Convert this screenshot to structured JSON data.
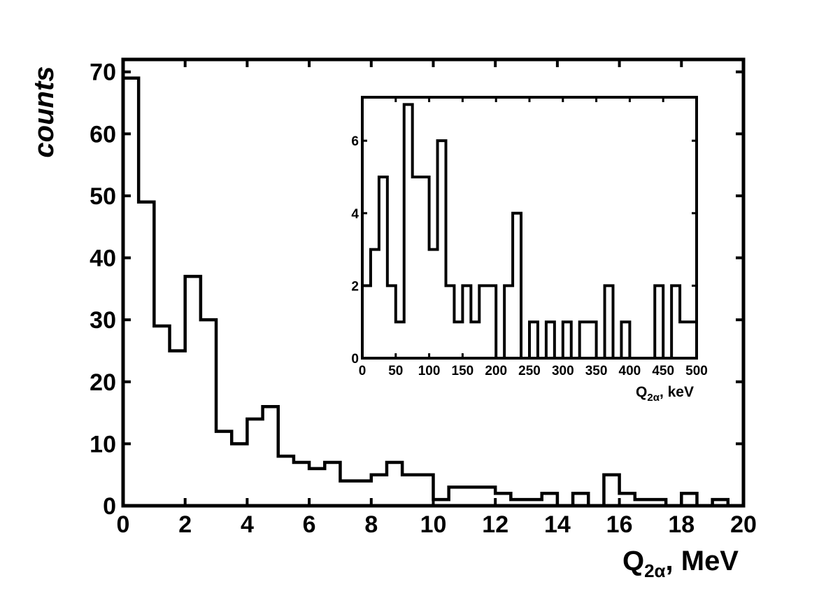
{
  "chart_data": [
    {
      "type": "histogram",
      "role": "main",
      "xlabel": {
        "base": "Q",
        "sub": "2α",
        "rest": ", MeV"
      },
      "ylabel": "counts",
      "xlim": [
        0,
        20
      ],
      "ylim": [
        0,
        72
      ],
      "xticks": [
        0,
        2,
        4,
        6,
        8,
        10,
        12,
        14,
        16,
        18,
        20
      ],
      "yticks": [
        0,
        10,
        20,
        30,
        40,
        50,
        60,
        70
      ],
      "bin_width": 0.5,
      "bin_start": 0,
      "values": [
        69,
        49,
        29,
        25,
        37,
        30,
        12,
        10,
        14,
        16,
        8,
        7,
        6,
        7,
        4,
        4,
        5,
        7,
        5,
        5,
        1,
        3,
        3,
        3,
        2,
        1,
        1,
        2,
        0,
        2,
        0,
        5,
        2,
        1,
        1,
        0,
        2,
        0,
        1,
        0
      ]
    },
    {
      "type": "histogram",
      "role": "inset",
      "xlabel": {
        "base": "Q",
        "sub": "2α",
        "rest": ", keV"
      },
      "xlim": [
        0,
        500
      ],
      "ylim": [
        0,
        7.2
      ],
      "xticks": [
        0,
        50,
        100,
        150,
        200,
        250,
        300,
        350,
        400,
        450,
        500
      ],
      "yticks": [
        0,
        2,
        4,
        6
      ],
      "bin_width": 12.5,
      "bin_start": 0,
      "values": [
        2,
        3,
        5,
        2,
        1,
        7,
        5,
        5,
        3,
        6,
        2,
        1,
        2,
        1,
        2,
        2,
        0,
        2,
        4,
        0,
        1,
        0,
        1,
        0,
        1,
        0,
        1,
        1,
        0,
        2,
        0,
        1,
        0,
        0,
        0,
        2,
        0,
        2,
        1,
        1
      ]
    }
  ]
}
